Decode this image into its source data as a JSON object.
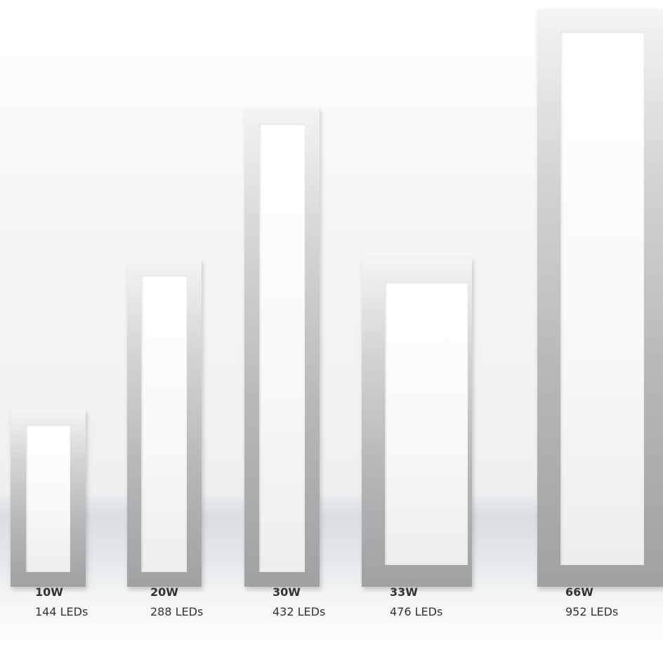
{
  "products": [
    {
      "power": "10W",
      "leds": "144 LEDs"
    },
    {
      "power": "20W",
      "leds": "288 LEDs"
    },
    {
      "power": "30W",
      "leds": "432 LEDs"
    },
    {
      "power": "33W",
      "leds": "476 LEDs"
    },
    {
      "power": "66W",
      "leds": "952 LEDs"
    }
  ]
}
